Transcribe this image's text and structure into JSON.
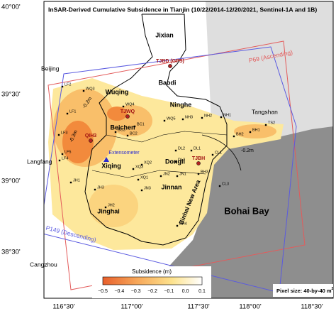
{
  "title": "InSAR-Derived Cumulative Subsidence in Tianjin (10/22/2014-12/20/2021, Sentinel-1A and 1B)",
  "lat_labels": [
    "40°00'",
    "39°30'",
    "39°00'",
    "38°30'"
  ],
  "lon_labels": [
    "116°30'",
    "117°00'",
    "117°30'",
    "118°00'",
    "118°30'"
  ],
  "districts": [
    "Jixian",
    "Baodi",
    "Wuqing",
    "Ninghe",
    "Beichen",
    "Dongli",
    "Xiqing",
    "Jinnan",
    "Jinghai"
  ],
  "cities": [
    "Beijing",
    "Langfang",
    "Tangshan",
    "Cangzhou"
  ],
  "sea": "Bohai Bay",
  "new_area": "Binhai New Area",
  "frames": [
    "P69 (Ascending)",
    "P149 (Descending)"
  ],
  "gps_stations": [
    "TJBD (GPS)",
    "TJWQ",
    "QIH3",
    "TJBH"
  ],
  "extensometer": "Extensometer",
  "benchmarks": [
    "LF2",
    "WQ3",
    "WQ4",
    "WQ5",
    "LF1",
    "BC1",
    "BC3",
    "BC2",
    "NH3",
    "NH2",
    "NH1",
    "BH1",
    "TS2",
    "BH2",
    "LF3",
    "LF5",
    "LF4",
    "DL1",
    "DL2",
    "DL3",
    "XQ2",
    "XQ3",
    "JN2",
    "JN1",
    "XQ1",
    "JN3",
    "JH1",
    "JH3",
    "JH2",
    "BH4",
    "BH3",
    "CL3",
    "CL1"
  ],
  "contour_labels": [
    "-0.2m",
    "-0.3m",
    "-0.2m"
  ],
  "colorbar": {
    "title": "Subsidence (m)",
    "ticks": [
      "−0.5",
      "−0.4",
      "−0.3",
      "−0.2",
      "−0.1",
      "0.0",
      "0.1"
    ]
  },
  "pixel_size": {
    "text": "Pixel size: 40-by-40 m",
    "sup": "2"
  }
}
